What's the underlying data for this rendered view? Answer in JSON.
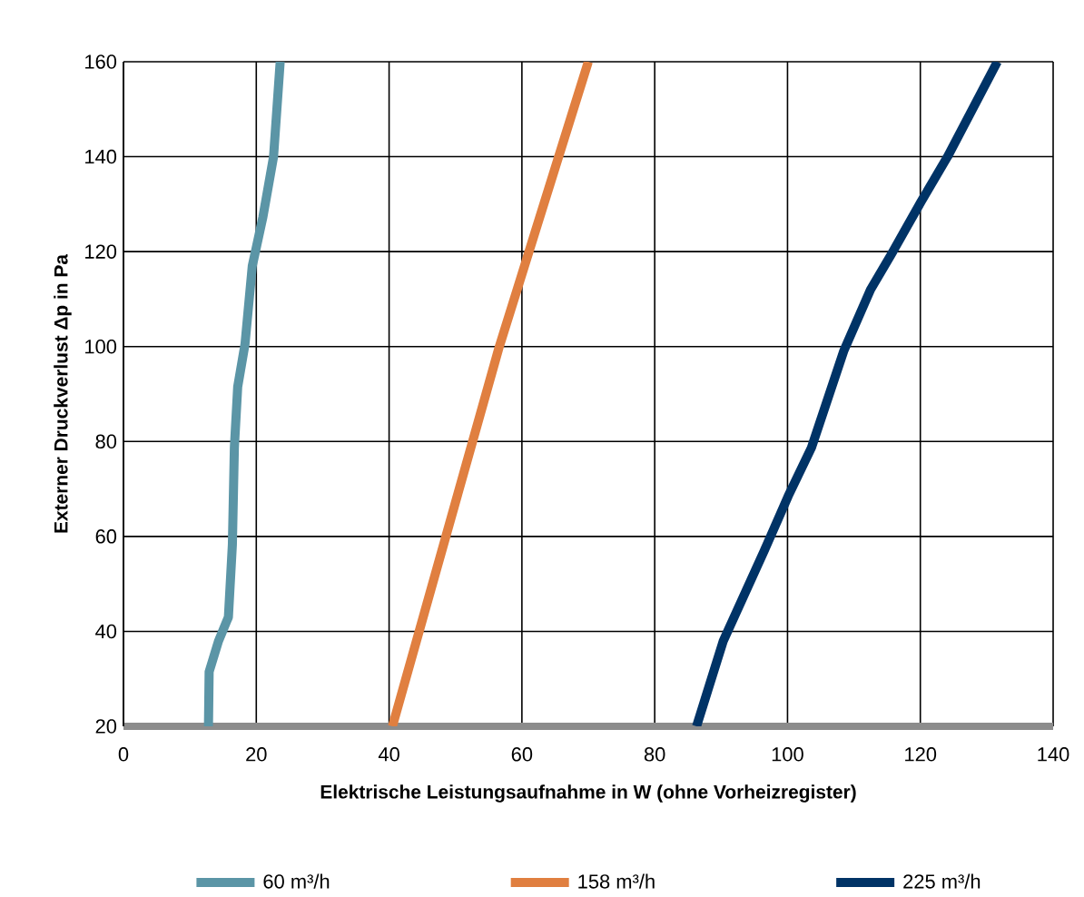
{
  "chart_data": {
    "type": "line",
    "xlabel": "Elektrische Leistungsaufnahme in W (ohne Vorheizregister)",
    "ylabel": "Externer Druckverlust Δp in Pa",
    "xlim": [
      0,
      140
    ],
    "ylim": [
      20,
      160
    ],
    "xticks": [
      0,
      20,
      40,
      60,
      80,
      100,
      120,
      140
    ],
    "yticks": [
      20,
      40,
      60,
      80,
      100,
      120,
      140,
      160
    ],
    "grid": true,
    "legend": "bottom",
    "marker": "none",
    "line_style": "solid",
    "series": [
      {
        "name": "60 m³/h",
        "color": "#5b95a6",
        "x": [
          12.8,
          12.9,
          14.3,
          15.8,
          16.4,
          16.7,
          17.2,
          18.3,
          19.4,
          21.0,
          22.6,
          23.6
        ],
        "values": [
          20,
          31.5,
          37.9,
          43,
          58.3,
          78.7,
          91.5,
          100.5,
          117,
          127.3,
          140,
          160
        ]
      },
      {
        "name": "158 m³/h",
        "color": "#e07f40",
        "x": [
          40.5,
          56.6,
          70.0
        ],
        "values": [
          20,
          100,
          160
        ]
      },
      {
        "name": "225 m³/h",
        "color": "#003366",
        "x": [
          86.3,
          90.3,
          96.5,
          100.1,
          103.6,
          108.5,
          112.5,
          115.7,
          120.1,
          124.1,
          131.6
        ],
        "values": [
          20,
          37.9,
          57,
          68.5,
          78.7,
          99.2,
          112,
          119.6,
          130.5,
          140,
          160
        ]
      }
    ]
  }
}
